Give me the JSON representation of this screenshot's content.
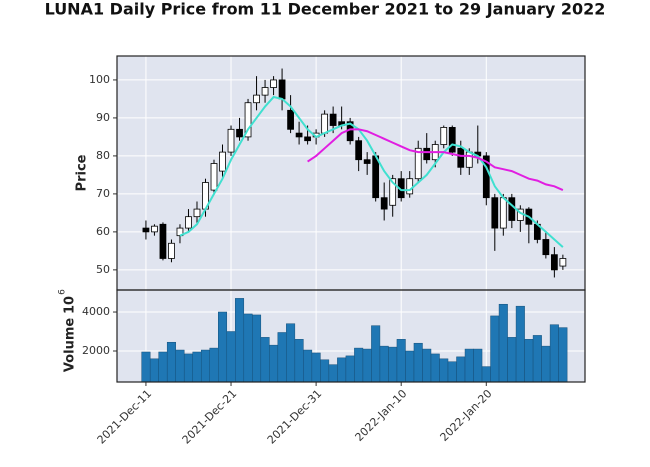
{
  "chart_data": {
    "type": "candlestick",
    "title": "LUNA1 Daily Price from 11 December 2021 to 29 January 2022",
    "ylabel": "Price",
    "volume_ylabel": "Volume",
    "volume_offset": {
      "base": "10",
      "exponent": "6"
    },
    "xlim": [
      -3.4,
      51.6
    ],
    "xticks": [
      {
        "value": 0,
        "label": "2021-Dec-11"
      },
      {
        "value": 10,
        "label": "2021-Dec-21"
      },
      {
        "value": 20,
        "label": "2021-Dec-31"
      },
      {
        "value": 30,
        "label": "2022-Jan-10"
      },
      {
        "value": 40,
        "label": "2022-Jan-20"
      }
    ],
    "ylim": [
      44.7,
      106.3
    ],
    "yticks": [
      50,
      60,
      70,
      80,
      90,
      100
    ],
    "volume_ylim": [
      410,
      5130
    ],
    "volume_yticks": [
      2000,
      4000
    ],
    "grid": true,
    "up_color": "#ffffff",
    "down_color": "#000000",
    "volume_color": "#1f77b4",
    "open": [
      61,
      60,
      62,
      53,
      59,
      61,
      64,
      66,
      71,
      76,
      81,
      87,
      85,
      94,
      96,
      98,
      100,
      92,
      86,
      85,
      85,
      86,
      91,
      89,
      89,
      84,
      79,
      80,
      69,
      67,
      74,
      70,
      74,
      82,
      79,
      83,
      87.5,
      82,
      77,
      81,
      80,
      69,
      61,
      69,
      63,
      66,
      62,
      58,
      54,
      51
    ],
    "high": [
      63,
      62,
      62.5,
      58,
      62,
      66,
      68,
      74,
      79,
      83,
      88,
      90,
      95,
      101,
      100,
      101,
      103,
      96,
      89,
      88,
      87,
      92,
      93,
      93,
      90,
      85,
      81,
      81,
      73,
      75,
      76,
      76,
      84,
      86,
      84,
      88,
      88,
      84,
      82,
      88,
      81,
      70,
      70,
      70,
      67,
      66.5,
      63,
      60,
      56,
      54
    ],
    "low": [
      58,
      59,
      52.5,
      52,
      57,
      60,
      62,
      64,
      70,
      74,
      80,
      84,
      84,
      92,
      94,
      96,
      92,
      86,
      83,
      83,
      83,
      85,
      86,
      87,
      83,
      76,
      75,
      68,
      63,
      64,
      68,
      69,
      73,
      78,
      77,
      82,
      80,
      75,
      75,
      78,
      67,
      55,
      59,
      61,
      60,
      57,
      57,
      53,
      48,
      50
    ],
    "close": [
      60,
      61.5,
      53,
      57,
      61,
      64,
      66,
      73,
      78,
      81,
      87,
      85,
      94,
      96,
      98,
      100,
      95,
      87,
      85,
      84,
      86,
      91,
      88,
      88,
      84,
      79,
      78,
      69,
      66,
      74,
      69,
      74,
      82,
      79,
      83,
      87.5,
      81,
      77,
      81,
      80,
      69,
      61,
      69,
      63,
      66,
      62,
      58,
      54,
      50,
      53
    ],
    "volume": [
      1950,
      1600,
      1950,
      2450,
      2050,
      1850,
      1950,
      2050,
      2150,
      4000,
      3000,
      4700,
      3900,
      3850,
      2700,
      2300,
      2950,
      3400,
      2600,
      2050,
      1900,
      1550,
      1300,
      1650,
      1750,
      2150,
      2100,
      3300,
      2250,
      2200,
      2600,
      2000,
      2400,
      2100,
      1850,
      1600,
      1450,
      1700,
      2100,
      2100,
      1200,
      3800,
      4400,
      2700,
      4300,
      2600,
      2800,
      2250,
      3350,
      3200
    ],
    "series": [
      {
        "color": "#40e0d0",
        "values": [
          null,
          null,
          null,
          null,
          59,
          60,
          62,
          66,
          70,
          74,
          79,
          83,
          87,
          90,
          93,
          95.5,
          95,
          93,
          90,
          87,
          85,
          86,
          87,
          88,
          88.5,
          87,
          84,
          80,
          76,
          73,
          71,
          71,
          73,
          75,
          78,
          81,
          83,
          82.5,
          81,
          80,
          77,
          72,
          69,
          67,
          65,
          64,
          62,
          60,
          58,
          56
        ]
      },
      {
        "color": "#e11ee1",
        "values": [
          null,
          null,
          null,
          null,
          null,
          null,
          null,
          null,
          null,
          null,
          null,
          null,
          null,
          null,
          null,
          null,
          null,
          null,
          null,
          78.5,
          80,
          82,
          84,
          86,
          87,
          87,
          86.5,
          85.5,
          84.5,
          83.5,
          82.5,
          81.5,
          81,
          81,
          81,
          81,
          80.5,
          80,
          80,
          79.5,
          78.5,
          77,
          76.5,
          76,
          75,
          74,
          73.5,
          72.5,
          72,
          71
        ]
      }
    ]
  }
}
